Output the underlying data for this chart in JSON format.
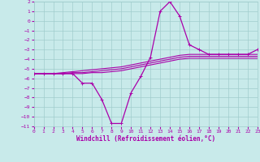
{
  "background_color": "#c8eaea",
  "grid_color": "#a0cccc",
  "line_color": "#aa00aa",
  "xlabel": "Windchill (Refroidissement éolien,°C)",
  "xlim": [
    0,
    23
  ],
  "ylim": [
    -11,
    2
  ],
  "xticks": [
    0,
    1,
    2,
    3,
    4,
    5,
    6,
    7,
    8,
    9,
    10,
    11,
    12,
    13,
    14,
    15,
    16,
    17,
    18,
    19,
    20,
    21,
    22,
    23
  ],
  "yticks": [
    2,
    1,
    0,
    -1,
    -2,
    -3,
    -4,
    -5,
    -6,
    -7,
    -8,
    -9,
    -10,
    -11
  ],
  "hours": [
    0,
    1,
    2,
    3,
    4,
    5,
    6,
    7,
    8,
    9,
    10,
    11,
    12,
    13,
    14,
    15,
    16,
    17,
    18,
    19,
    20,
    21,
    22,
    23
  ],
  "band1": [
    -5.5,
    -5.5,
    -5.5,
    -5.4,
    -5.3,
    -5.2,
    -5.1,
    -5.0,
    -4.9,
    -4.8,
    -4.6,
    -4.4,
    -4.2,
    -4.0,
    -3.8,
    -3.6,
    -3.5,
    -3.5,
    -3.5,
    -3.5,
    -3.5,
    -3.5,
    -3.5,
    -3.5
  ],
  "band2": [
    -5.5,
    -5.5,
    -5.5,
    -5.5,
    -5.4,
    -5.4,
    -5.3,
    -5.2,
    -5.1,
    -5.0,
    -4.8,
    -4.6,
    -4.4,
    -4.2,
    -4.0,
    -3.8,
    -3.7,
    -3.7,
    -3.7,
    -3.7,
    -3.7,
    -3.7,
    -3.7,
    -3.7
  ],
  "band3": [
    -5.5,
    -5.5,
    -5.5,
    -5.5,
    -5.5,
    -5.5,
    -5.4,
    -5.4,
    -5.3,
    -5.2,
    -5.0,
    -4.8,
    -4.6,
    -4.4,
    -4.2,
    -4.0,
    -3.9,
    -3.9,
    -3.9,
    -3.9,
    -3.9,
    -3.9,
    -3.9,
    -3.9
  ],
  "main": [
    -5.5,
    -5.5,
    -5.5,
    -5.5,
    -5.5,
    -6.5,
    -6.5,
    -8.2,
    -10.7,
    -10.7,
    -7.5,
    -5.8,
    -3.8,
    1.0,
    2.0,
    0.5,
    -2.5,
    -3.0,
    -3.5,
    -3.5,
    -3.5,
    -3.5,
    -3.5,
    -3.0
  ],
  "lw_band": 0.8,
  "lw_main": 0.9,
  "marker": "+",
  "markersize": 3.5,
  "tick_fontsize": 4.5,
  "xlabel_fontsize": 5.5
}
